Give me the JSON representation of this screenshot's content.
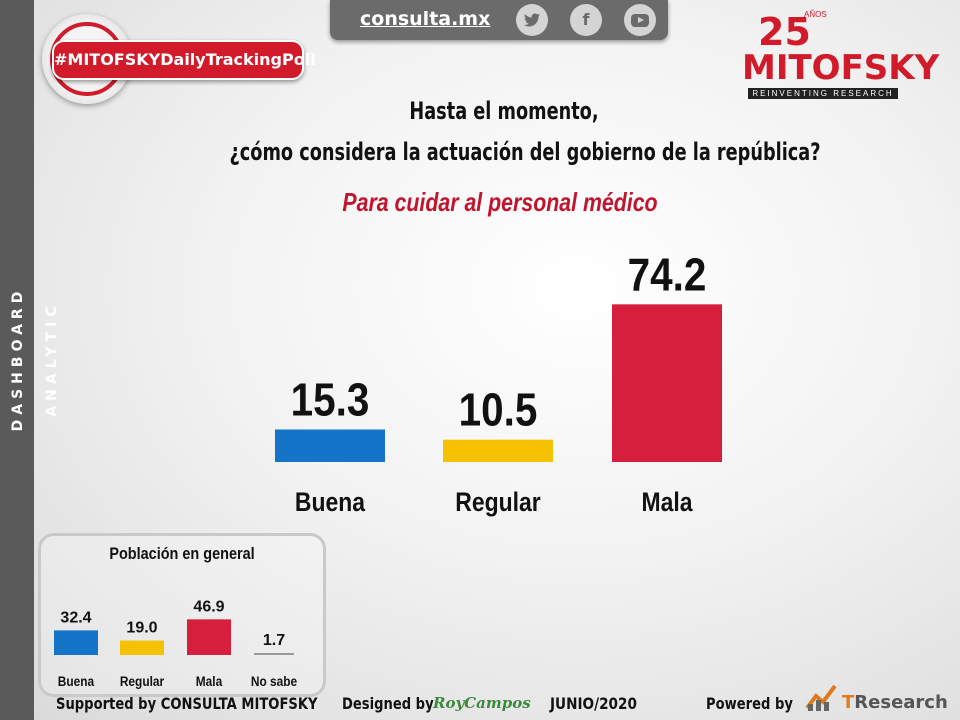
{
  "sidebar": {
    "label": "DASHBOARD ANALYTIC"
  },
  "topbar": {
    "site": "consulta.mx",
    "social": [
      {
        "icon": "twitter-icon",
        "glyph": "t"
      },
      {
        "icon": "facebook-icon",
        "glyph": "f"
      },
      {
        "icon": "youtube-icon",
        "glyph": ""
      }
    ]
  },
  "hashtag": "#MITOFSKYDailyTrackingPoll",
  "logo": {
    "number": "25",
    "anos": "AÑOS",
    "name": "MITOFSKY",
    "tagline": "REINVENTING RESEARCH"
  },
  "question": {
    "line1": "Hasta el momento,",
    "line2": "¿cómo considera la actuación del gobierno de la república?"
  },
  "subtitle": "Para cuidar al personal médico",
  "chart_data": [
    {
      "type": "bar",
      "categories": [
        "Buena",
        "Regular",
        "Mala"
      ],
      "values": [
        15.3,
        10.5,
        74.2
      ],
      "colors": [
        "#1475c8",
        "#f5c100",
        "#d61f3c"
      ],
      "ylim": [
        0,
        80
      ]
    },
    {
      "type": "bar",
      "title": "Población en general",
      "categories": [
        "Buena",
        "Regular",
        "Mala",
        "No sabe"
      ],
      "values": [
        32.4,
        19.0,
        46.9,
        1.7
      ],
      "value_labels": [
        "32.4",
        "19.0",
        "46.9",
        "1.7"
      ],
      "colors": [
        "#1475c8",
        "#f5c100",
        "#d61f3c",
        "#9a9a9a"
      ],
      "ylim": [
        0,
        50
      ]
    }
  ],
  "footer": {
    "supported": "Supported by  CONSULTA  MITOFSKY",
    "designed": "Designed by",
    "designer": "RoyCampos",
    "date": "JUNIO/2020",
    "powered": "Powered by",
    "brand_t": "T",
    "brand_rest": "Research"
  }
}
